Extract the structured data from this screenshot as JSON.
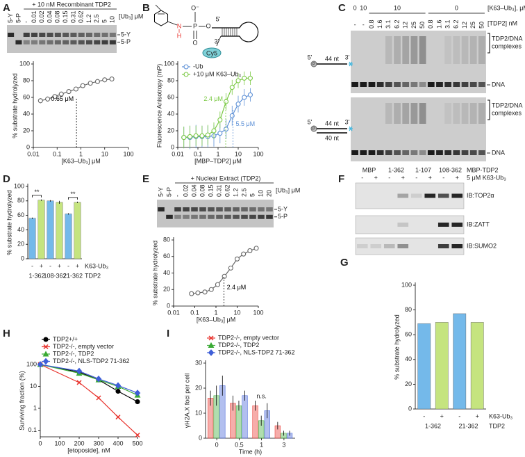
{
  "panel_labels": [
    "A",
    "B",
    "C",
    "D",
    "E",
    "F",
    "G",
    "H",
    "I"
  ],
  "gel_a": {
    "title": "+ 10 nM Recombinant TDP2",
    "lanes": [
      "5-Y",
      "5-P",
      "-",
      "0.01",
      "0.02",
      "0.04",
      "0.08",
      "0.15",
      "0.31",
      "0.62",
      "1.2",
      "2.5",
      "5",
      "10"
    ],
    "unit": "[Ub₃] μM",
    "bands": [
      "5-Y",
      "5-P"
    ]
  },
  "structure_b": {
    "n": "N",
    "h": "H",
    "p": "P",
    "o_minus": "O⁻",
    "o_double": "O",
    "o_bridge": "O",
    "five": "5'",
    "three": "3'",
    "dye": "Cy5"
  },
  "gel_c": {
    "ub_levels": [
      "0",
      "10",
      "10",
      "0"
    ],
    "ub_unit": "[K63–Ub₃], μM",
    "controls": [
      "-",
      "-"
    ],
    "tdp2_lanes": [
      "0.8",
      "1.6",
      "3.1",
      "6.2",
      "12",
      "25",
      "50",
      "0.8",
      "1.6",
      "3.1",
      "6.2",
      "12",
      "25",
      "50"
    ],
    "tdp2_unit": "[TDP2] nM",
    "complex_label": [
      "TDP2/DNA",
      "complexes"
    ],
    "dna_label": "DNA",
    "ss_probe": {
      "p": "P",
      "five": "5'",
      "length": "44 nt",
      "three": "3'"
    },
    "ds_probe": {
      "p": "P",
      "five": "5'",
      "length": "44 nt",
      "three": "3'",
      "bottom": "40 nt"
    }
  },
  "gel_e": {
    "title": "+ Nuclear Extract (TDP2)",
    "lanes": [
      "5-Y",
      "5-P",
      "-",
      "0.02",
      "0.04",
      "0.08",
      "0.15",
      "0.31",
      "0.62",
      "1.2",
      "2.5",
      "5",
      "10",
      "20"
    ],
    "unit": "[Ub₃] μM",
    "bands": [
      "5-Y",
      "5-P"
    ]
  },
  "blot_f": {
    "groups": [
      "MBP",
      "1-362",
      "1-107",
      "108-362"
    ],
    "construct": "MBP-TDP2",
    "treatments": [
      "-",
      "+",
      "-",
      "+",
      "-",
      "+",
      "-",
      "+"
    ],
    "treatment_label": "5 μM K63-Ub₃",
    "blots": [
      "IB:TOP2α",
      "IB:ZATT",
      "IB:SUMO2"
    ]
  },
  "chart_data": [
    {
      "type": "line",
      "xlog": true,
      "xlim": [
        0.01,
        100
      ],
      "xticks": [
        0.01,
        0.1,
        1,
        10,
        100
      ],
      "ylim": [
        0,
        100
      ],
      "yticks": [
        0,
        20,
        40,
        60,
        80,
        100
      ],
      "xlabel": "[K63–Ub₃] μM",
      "ylabel": "% substrate hydrolyzed",
      "marker": "circle",
      "color": "#666666",
      "x": [
        0.02,
        0.04,
        0.08,
        0.15,
        0.31,
        0.62,
        1.2,
        2.5,
        5,
        10,
        20
      ],
      "values": [
        56,
        58,
        61,
        64,
        67,
        70,
        74,
        77,
        79,
        81,
        82
      ],
      "errors": [
        3,
        3,
        2,
        2,
        2,
        2,
        2,
        2,
        2,
        1,
        1
      ],
      "ec50": [
        {
          "value": 0.65,
          "label": "0.65 μM",
          "color": "#000000"
        }
      ]
    },
    {
      "type": "line",
      "xlog": true,
      "xlim": [
        0.01,
        100
      ],
      "xticks": [
        0.01,
        0.1,
        1,
        10,
        100
      ],
      "ylim": [
        0,
        100
      ],
      "yticks": [
        0,
        20,
        40,
        60,
        80,
        100
      ],
      "xlabel": "[MBP–TDP2] μM",
      "ylabel": "Fluorescence Anisotropy (mP)",
      "marker": "circle",
      "x": [
        0.02,
        0.04,
        0.08,
        0.16,
        0.31,
        0.62,
        1.25,
        2.5,
        5,
        10,
        20,
        40
      ],
      "series": [
        {
          "name": "-Ub",
          "color": "#5b8fd6",
          "values": [
            12,
            12,
            13,
            13,
            13,
            14,
            17,
            22,
            38,
            52,
            60,
            63
          ],
          "errors": [
            13,
            14,
            14,
            13,
            13,
            13,
            12,
            12,
            12,
            10,
            10,
            8
          ]
        },
        {
          "name": "+10 μM K63–Ub₃",
          "color": "#7ac943",
          "values": [
            12,
            13,
            14,
            14,
            15,
            20,
            33,
            55,
            72,
            80,
            83,
            83
          ],
          "errors": [
            13,
            13,
            12,
            12,
            12,
            10,
            10,
            10,
            9,
            9,
            8,
            8
          ]
        }
      ],
      "ec50": [
        {
          "value": 2.4,
          "label": "2.4 μM",
          "color": "#7ac943"
        },
        {
          "value": 5.5,
          "label": "5.5 μM",
          "color": "#5b8fd6"
        }
      ]
    },
    {
      "type": "bar",
      "ylim": [
        0,
        100
      ],
      "yticks": [
        0,
        20,
        40,
        60,
        80,
        100
      ],
      "ylabel": "% substrate hydrolyzed",
      "categories": [
        "-",
        "+",
        "-",
        "+",
        "-",
        "+"
      ],
      "groups": [
        "1-362",
        "108-362",
        "21-362"
      ],
      "row_label": "K63-Ub₃",
      "group_label": "TDP2",
      "values": [
        56,
        81,
        80,
        78,
        62,
        78
      ],
      "errors": [
        1,
        1,
        1,
        2,
        1,
        1
      ],
      "colors": [
        "#74b9ea",
        "#c5e47f",
        "#74b9ea",
        "#c5e47f",
        "#74b9ea",
        "#c5e47f"
      ],
      "significance": [
        "**",
        null,
        "**"
      ]
    },
    {
      "type": "line",
      "xlog": true,
      "xlim": [
        0.01,
        100
      ],
      "xticks": [
        0.01,
        0.1,
        1,
        10,
        100
      ],
      "ylim": [
        0,
        80
      ],
      "yticks": [
        0,
        20,
        40,
        60,
        80
      ],
      "xlabel": "[K63–Ub₃] μM",
      "ylabel": "% substrate hydrolyzed",
      "marker": "circle",
      "color": "#666666",
      "x": [
        0.07,
        0.14,
        0.3,
        0.6,
        1.2,
        2.5,
        5,
        10,
        20,
        40,
        80
      ],
      "values": [
        15,
        16,
        17,
        20,
        26,
        36,
        46,
        57,
        63,
        67,
        70
      ],
      "ec50": [
        {
          "value": 2.4,
          "label": "2.4 μM",
          "color": "#000000"
        }
      ]
    },
    {
      "type": "bar",
      "ylim": [
        0,
        100
      ],
      "yticks": [
        0,
        20,
        40,
        60,
        80,
        100
      ],
      "ylabel": "% substrate hydrolyzed",
      "categories": [
        "-",
        "+",
        "-",
        "+"
      ],
      "groups": [
        "1-362",
        "21-362"
      ],
      "row_label": "K63-Ub₃",
      "group_label": "TDP2",
      "values": [
        69,
        70,
        77,
        70
      ],
      "colors": [
        "#74b9ea",
        "#c5e47f",
        "#74b9ea",
        "#c5e47f"
      ]
    },
    {
      "type": "line",
      "ylog": true,
      "xlim": [
        0,
        500
      ],
      "xticks": [
        0,
        100,
        200,
        300,
        400,
        500
      ],
      "ylim": [
        0.05,
        100
      ],
      "yticks": [
        0.1,
        1,
        10,
        100
      ],
      "xlabel": "[etoposide], nM",
      "ylabel": "Surviving fraction (%)",
      "x": [
        0,
        200,
        300,
        400,
        500
      ],
      "series": [
        {
          "name": "TDP2+/+",
          "color": "#000000",
          "marker": "circle",
          "values": [
            100,
            45,
            20,
            6,
            2
          ]
        },
        {
          "name": "TDP2-/-, empty vector",
          "color": "#e8312b",
          "marker": "x",
          "values": [
            100,
            15,
            3,
            0.4,
            0.06
          ]
        },
        {
          "name": "TDP2-/-, TDP2",
          "color": "#3aaa35",
          "marker": "triangle",
          "values": [
            100,
            40,
            20,
            10,
            4
          ]
        },
        {
          "name": "TDP2-/-, NLS-TDP2 71-362",
          "color": "#3f5fd8",
          "marker": "diamond",
          "values": [
            100,
            50,
            22,
            11,
            5
          ]
        }
      ]
    },
    {
      "type": "grouped_bar",
      "ylim": [
        0,
        30
      ],
      "yticks": [
        0,
        10,
        20,
        30
      ],
      "xlabel": "Time (h)",
      "ylabel": "γH2A.X foci per cell",
      "categories": [
        "0",
        "0.5",
        "1",
        "3"
      ],
      "significance": [
        null,
        null,
        "n.s.",
        null
      ],
      "series": [
        {
          "name": "TDP2-/-, empty vector",
          "color": "#e8312b",
          "marker": "x",
          "values": [
            16,
            14,
            13,
            5
          ],
          "errors": [
            3,
            3,
            2,
            1.5
          ]
        },
        {
          "name": "TDP2-/-, TDP2",
          "color": "#3aaa35",
          "marker": "triangle",
          "values": [
            17,
            13,
            7,
            2
          ],
          "errors": [
            4,
            2,
            2,
            1
          ]
        },
        {
          "name": "TDP2-/-, NLS-TDP2 71-362",
          "color": "#3f5fd8",
          "marker": "diamond",
          "values": [
            21,
            17,
            11,
            2
          ],
          "errors": [
            4,
            2,
            3,
            1
          ]
        }
      ]
    }
  ]
}
